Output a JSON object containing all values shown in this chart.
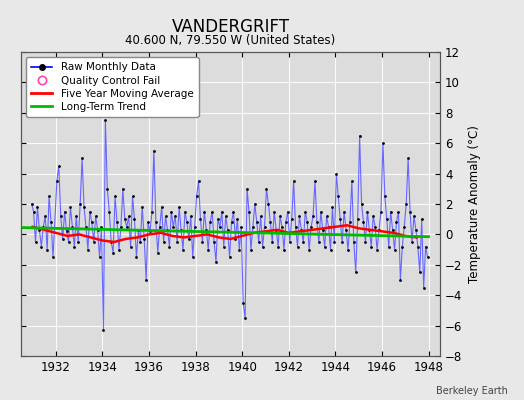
{
  "title": "VANDERGRIFT",
  "subtitle": "40.600 N, 79.550 W (United States)",
  "ylabel": "Temperature Anomaly (°C)",
  "watermark": "Berkeley Earth",
  "ylim": [
    -8,
    12
  ],
  "xlim": [
    1930.5,
    1948.5
  ],
  "xticks": [
    1932,
    1934,
    1936,
    1938,
    1940,
    1942,
    1944,
    1946,
    1948
  ],
  "yticks": [
    -8,
    -6,
    -4,
    -2,
    0,
    2,
    4,
    6,
    8,
    10,
    12
  ],
  "background_color": "#e8e8e8",
  "plot_bg_color": "#dcdcdc",
  "raw_line_color": "#6666ff",
  "raw_marker_color": "#000000",
  "ma_color": "#ff0000",
  "trend_color": "#00bb00",
  "qc_color": "#ff44aa",
  "legend_raw_line": "#0000ff",
  "raw_data": {
    "times": [
      1930.958,
      1931.042,
      1931.125,
      1931.208,
      1931.292,
      1931.375,
      1931.458,
      1931.542,
      1931.625,
      1931.708,
      1931.792,
      1931.875,
      1932.042,
      1932.125,
      1932.208,
      1932.292,
      1932.375,
      1932.458,
      1932.542,
      1932.625,
      1932.708,
      1932.792,
      1932.875,
      1932.958,
      1933.042,
      1933.125,
      1933.208,
      1933.292,
      1933.375,
      1933.458,
      1933.542,
      1933.625,
      1933.708,
      1933.792,
      1933.875,
      1933.958,
      1934.042,
      1934.125,
      1934.208,
      1934.292,
      1934.375,
      1934.458,
      1934.542,
      1934.625,
      1934.708,
      1934.792,
      1934.875,
      1934.958,
      1935.042,
      1935.125,
      1935.208,
      1935.292,
      1935.375,
      1935.458,
      1935.542,
      1935.625,
      1935.708,
      1935.792,
      1935.875,
      1935.958,
      1936.042,
      1936.125,
      1936.208,
      1936.292,
      1936.375,
      1936.458,
      1936.542,
      1936.625,
      1936.708,
      1936.792,
      1936.875,
      1936.958,
      1937.042,
      1937.125,
      1937.208,
      1937.292,
      1937.375,
      1937.458,
      1937.542,
      1937.625,
      1937.708,
      1937.792,
      1937.875,
      1937.958,
      1938.042,
      1938.125,
      1938.208,
      1938.292,
      1938.375,
      1938.458,
      1938.542,
      1938.625,
      1938.708,
      1938.792,
      1938.875,
      1938.958,
      1939.042,
      1939.125,
      1939.208,
      1939.292,
      1939.375,
      1939.458,
      1939.542,
      1939.625,
      1939.708,
      1939.792,
      1939.875,
      1939.958,
      1940.042,
      1940.125,
      1940.208,
      1940.292,
      1940.375,
      1940.458,
      1940.542,
      1940.625,
      1940.708,
      1940.792,
      1940.875,
      1940.958,
      1941.042,
      1941.125,
      1941.208,
      1941.292,
      1941.375,
      1941.458,
      1941.542,
      1941.625,
      1941.708,
      1941.792,
      1941.875,
      1941.958,
      1942.042,
      1942.125,
      1942.208,
      1942.292,
      1942.375,
      1942.458,
      1942.542,
      1942.625,
      1942.708,
      1942.792,
      1942.875,
      1942.958,
      1943.042,
      1943.125,
      1943.208,
      1943.292,
      1943.375,
      1943.458,
      1943.542,
      1943.625,
      1943.708,
      1943.792,
      1943.875,
      1943.958,
      1944.042,
      1944.125,
      1944.208,
      1944.292,
      1944.375,
      1944.458,
      1944.542,
      1944.625,
      1944.708,
      1944.792,
      1944.875,
      1944.958,
      1945.042,
      1945.125,
      1945.208,
      1945.292,
      1945.375,
      1945.458,
      1945.542,
      1945.625,
      1945.708,
      1945.792,
      1945.875,
      1945.958,
      1946.042,
      1946.125,
      1946.208,
      1946.292,
      1946.375,
      1946.458,
      1946.542,
      1946.625,
      1946.708,
      1946.792,
      1946.875,
      1946.958,
      1947.042,
      1947.125,
      1947.208,
      1947.292,
      1947.375,
      1947.458,
      1947.542,
      1947.625,
      1947.708,
      1947.792,
      1947.875,
      1947.958
    ],
    "values": [
      2.0,
      1.5,
      -0.5,
      1.8,
      0.3,
      -0.8,
      0.5,
      1.2,
      -1.0,
      2.5,
      0.8,
      -1.5,
      3.5,
      4.5,
      1.2,
      -0.3,
      1.5,
      0.2,
      -0.5,
      1.8,
      0.5,
      -0.8,
      1.2,
      -0.5,
      2.0,
      5.0,
      1.8,
      0.5,
      -1.0,
      1.5,
      0.8,
      -0.5,
      1.2,
      0.3,
      -1.5,
      0.5,
      -6.3,
      7.5,
      3.0,
      1.5,
      -0.5,
      -1.2,
      2.5,
      0.8,
      -1.0,
      0.5,
      3.0,
      1.0,
      0.5,
      1.2,
      -0.8,
      2.5,
      1.0,
      -1.5,
      0.3,
      -0.5,
      1.8,
      -0.3,
      -3.0,
      0.8,
      0.2,
      1.5,
      5.5,
      0.8,
      -1.2,
      0.5,
      1.8,
      -0.5,
      1.2,
      0.3,
      -0.8,
      1.5,
      0.5,
      1.2,
      -0.5,
      1.8,
      0.3,
      -1.0,
      1.5,
      0.8,
      -0.3,
      1.2,
      -1.5,
      0.5,
      2.5,
      3.5,
      1.0,
      -0.5,
      1.5,
      0.3,
      -1.0,
      0.8,
      1.5,
      -0.5,
      -1.8,
      1.0,
      0.5,
      1.5,
      -0.8,
      1.2,
      0.3,
      -1.5,
      0.8,
      1.5,
      -0.3,
      1.0,
      -1.0,
      0.5,
      -4.5,
      -5.5,
      3.0,
      1.5,
      -1.0,
      0.5,
      2.0,
      0.8,
      -0.5,
      1.2,
      -0.8,
      0.5,
      3.0,
      2.0,
      0.8,
      -0.5,
      1.5,
      0.3,
      -0.8,
      1.2,
      0.5,
      -1.0,
      0.8,
      1.5,
      -0.5,
      1.0,
      3.5,
      0.5,
      -0.8,
      1.2,
      0.3,
      -0.5,
      1.5,
      0.8,
      -1.0,
      0.5,
      1.2,
      3.5,
      0.8,
      -0.5,
      1.5,
      0.3,
      -0.8,
      1.2,
      0.5,
      -1.0,
      1.8,
      -0.5,
      4.0,
      2.5,
      1.0,
      -0.5,
      1.5,
      0.3,
      -1.0,
      0.8,
      3.5,
      -0.5,
      -2.5,
      1.0,
      6.5,
      2.0,
      0.8,
      -0.5,
      1.5,
      0.3,
      -0.8,
      1.2,
      0.5,
      -1.0,
      0.3,
      1.5,
      6.0,
      2.5,
      1.0,
      -0.8,
      1.5,
      0.3,
      -1.0,
      0.8,
      1.5,
      -3.0,
      -0.8,
      0.5,
      2.0,
      5.0,
      1.5,
      -0.5,
      1.2,
      0.3,
      -0.8,
      -2.5,
      1.0,
      -3.5,
      -0.8,
      -1.5
    ]
  },
  "moving_avg": {
    "times": [
      1931.0,
      1931.5,
      1932.0,
      1932.5,
      1933.0,
      1933.5,
      1934.0,
      1934.5,
      1935.0,
      1935.5,
      1936.0,
      1936.5,
      1937.0,
      1937.5,
      1938.0,
      1938.5,
      1939.0,
      1939.5,
      1940.0,
      1940.5,
      1941.0,
      1941.5,
      1942.0,
      1942.5,
      1943.0,
      1943.5,
      1944.0,
      1944.5,
      1945.0,
      1945.5,
      1946.0,
      1946.5,
      1947.0,
      1947.5
    ],
    "values": [
      0.5,
      0.3,
      0.1,
      -0.1,
      0.0,
      -0.2,
      -0.4,
      -0.5,
      -0.3,
      -0.2,
      0.0,
      0.1,
      -0.1,
      -0.2,
      -0.1,
      0.0,
      -0.2,
      -0.3,
      -0.1,
      0.1,
      0.2,
      0.3,
      0.1,
      0.2,
      0.3,
      0.4,
      0.5,
      0.6,
      0.4,
      0.3,
      0.2,
      0.1,
      -0.1,
      -0.2
    ]
  },
  "trend": {
    "times": [
      1930.5,
      1948.0
    ],
    "values": [
      0.45,
      -0.15
    ]
  }
}
